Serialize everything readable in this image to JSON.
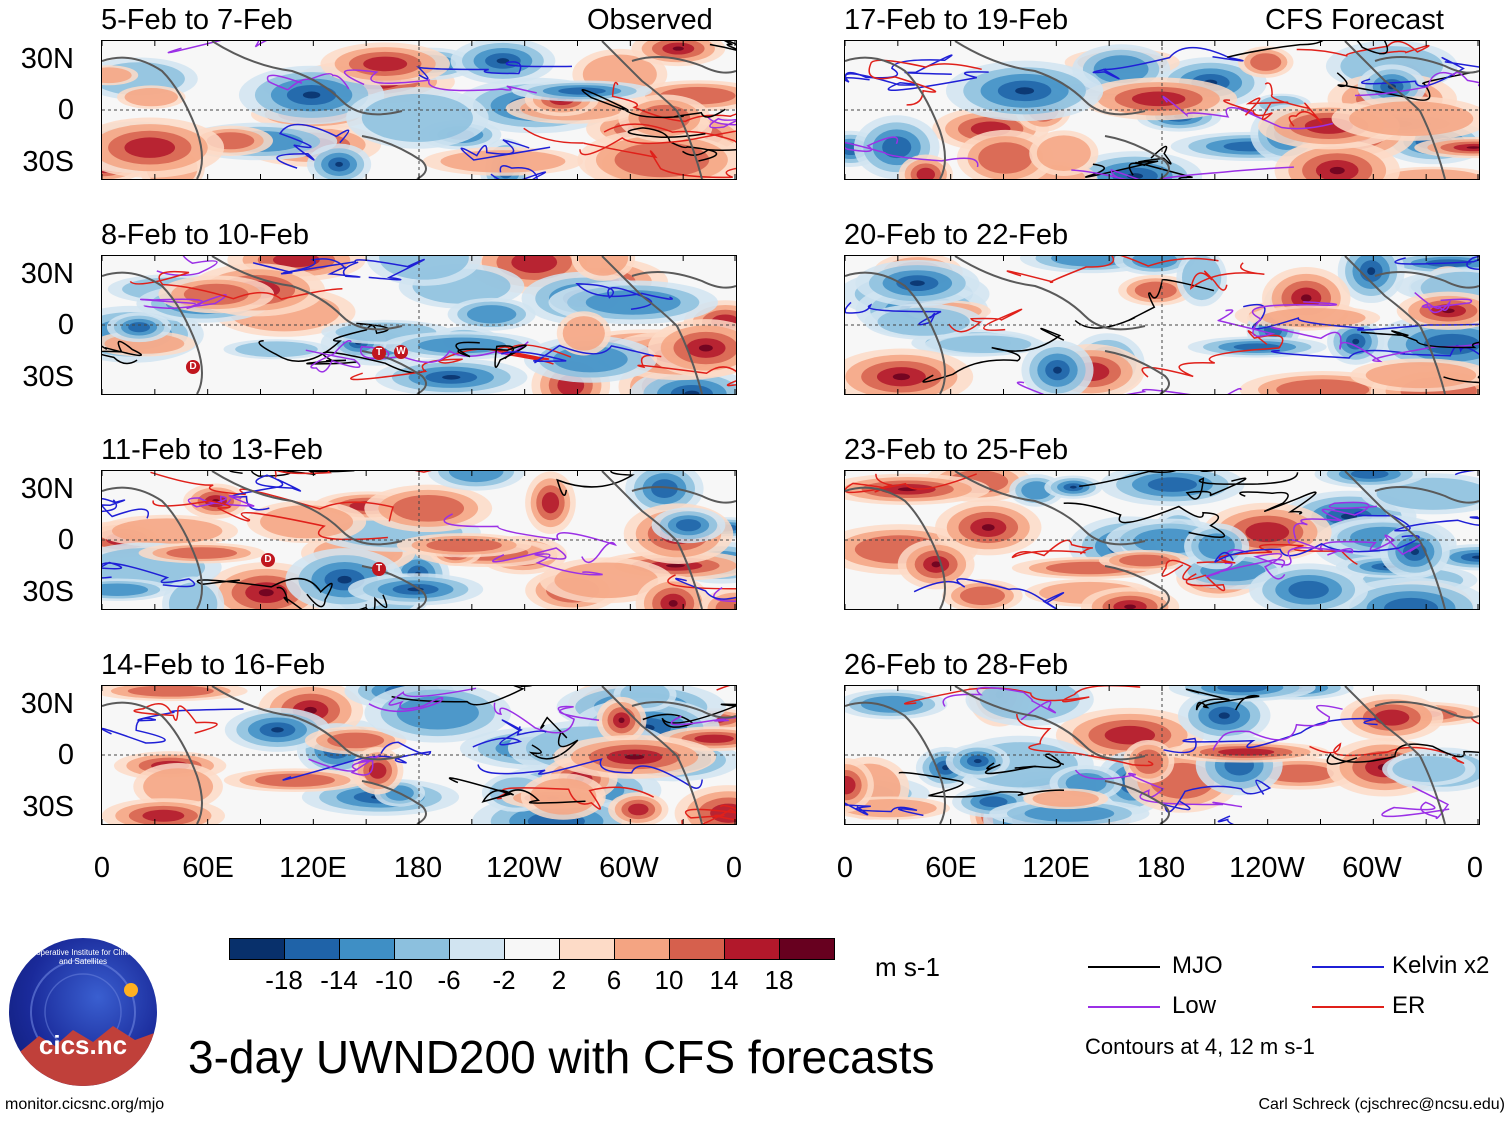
{
  "observed_label": "Observed",
  "forecast_label": "CFS Forecast",
  "panels_left": [
    {
      "title": "5-Feb to 7-Feb"
    },
    {
      "title": "8-Feb to 10-Feb"
    },
    {
      "title": "11-Feb to 13-Feb"
    },
    {
      "title": "14-Feb to 16-Feb"
    }
  ],
  "panels_right": [
    {
      "title": "17-Feb to 19-Feb"
    },
    {
      "title": "20-Feb to 22-Feb"
    },
    {
      "title": "23-Feb to 25-Feb"
    },
    {
      "title": "26-Feb to 28-Feb"
    }
  ],
  "lat_labels": [
    "30N",
    "0",
    "30S"
  ],
  "lon_labels": [
    "0",
    "60E",
    "120E",
    "180",
    "120W",
    "60W",
    "0"
  ],
  "storm_markers": [
    "D",
    "T",
    "W",
    "D",
    "T"
  ],
  "colorbar": {
    "colors": [
      "#08306b",
      "#1f63a8",
      "#3f8fc5",
      "#8cc0de",
      "#d1e4f1",
      "#f7f7f7",
      "#fddbc7",
      "#f4a482",
      "#d6604d",
      "#b2182b",
      "#67001f"
    ],
    "labels": [
      "-18",
      "-14",
      "-10",
      "-6",
      "-2",
      "2",
      "6",
      "10",
      "14",
      "18"
    ],
    "units": "m s-1"
  },
  "legend": {
    "mjo": {
      "label": "MJO",
      "color": "#000000"
    },
    "kelvin": {
      "label": "Kelvin x2",
      "color": "#1f1fd6"
    },
    "low": {
      "label": "Low",
      "color": "#9b30e6"
    },
    "er": {
      "label": "ER",
      "color": "#e0201a"
    },
    "note": "Contours at 4, 12 m s-1"
  },
  "main_title": "3-day UWND200 with CFS forecasts",
  "logo_text": "cics.nc",
  "logo_ring_text": "Cooperative Institute for Climate and Satellites",
  "footer_left": "monitor.cicsnc.org/mjo",
  "footer_right": "Carl Schreck (cjschrec@ncsu.edu)"
}
